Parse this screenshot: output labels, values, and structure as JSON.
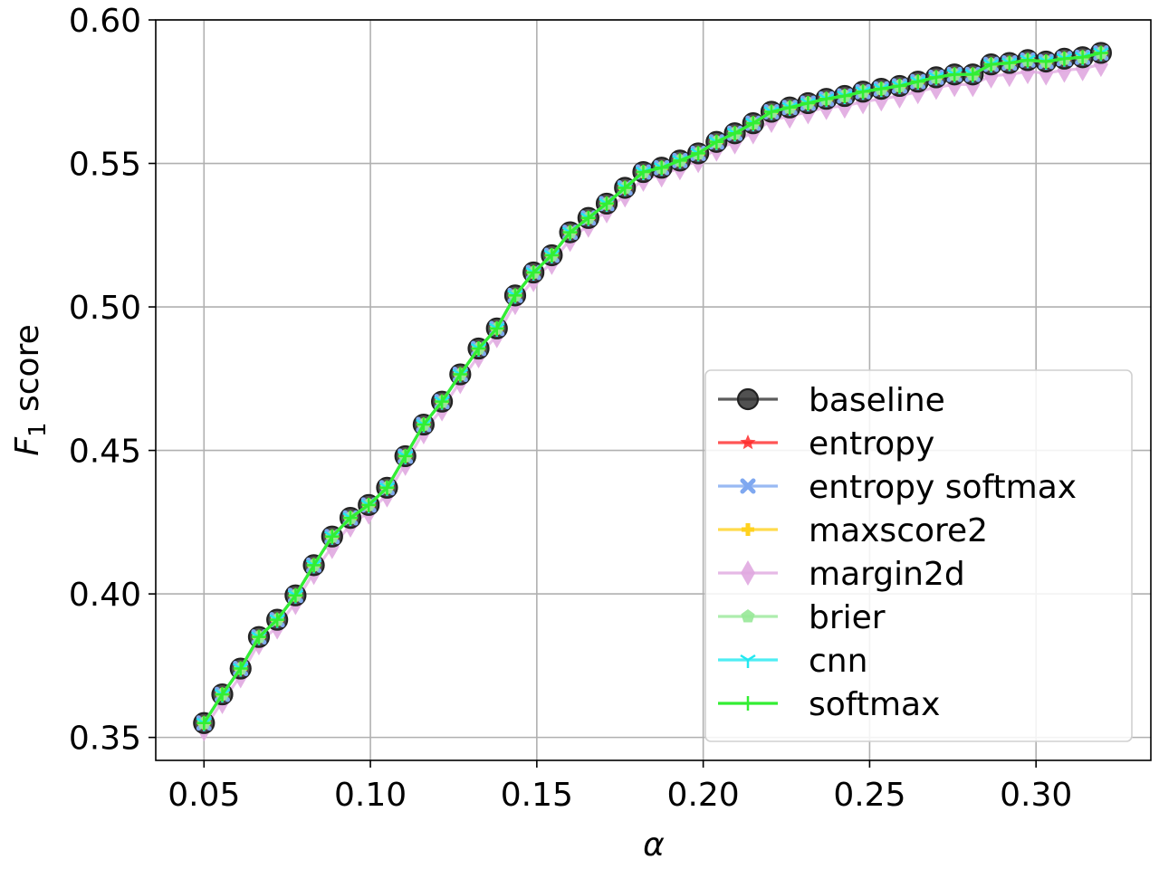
{
  "chart_data": {
    "type": "line",
    "title": "",
    "xlabel": "α",
    "ylabel_main": "F",
    "ylabel_sub": "1",
    "ylabel_rest": " score",
    "xlim": [
      0.0355,
      0.3345
    ],
    "ylim": [
      0.342,
      0.6
    ],
    "xticks": [
      0.05,
      0.1,
      0.15,
      0.2,
      0.25,
      0.3
    ],
    "xtick_labels": [
      "0.05",
      "0.10",
      "0.15",
      "0.20",
      "0.25",
      "0.30"
    ],
    "yticks": [
      0.35,
      0.4,
      0.45,
      0.5,
      0.55,
      0.6
    ],
    "ytick_labels": [
      "0.35",
      "0.40",
      "0.45",
      "0.50",
      "0.55",
      "0.60"
    ],
    "grid": true,
    "legend_position": "bottom-right",
    "x": [
      0.05,
      0.0555,
      0.061,
      0.0665,
      0.072,
      0.0775,
      0.083,
      0.0885,
      0.094,
      0.0995,
      0.105,
      0.1105,
      0.116,
      0.1215,
      0.127,
      0.1325,
      0.138,
      0.1435,
      0.149,
      0.1545,
      0.16,
      0.1655,
      0.171,
      0.1765,
      0.182,
      0.1875,
      0.193,
      0.1985,
      0.204,
      0.2095,
      0.215,
      0.2205,
      0.226,
      0.2315,
      0.237,
      0.2425,
      0.248,
      0.2535,
      0.259,
      0.2645,
      0.27,
      0.2755,
      0.281,
      0.2865,
      0.292,
      0.2975,
      0.303,
      0.3085,
      0.314,
      0.3195
    ],
    "series": [
      {
        "name": "baseline",
        "color": "#333333",
        "marker": "circle",
        "values": [
          0.355,
          0.365,
          0.374,
          0.385,
          0.391,
          0.3995,
          0.41,
          0.42,
          0.4265,
          0.431,
          0.437,
          0.448,
          0.459,
          0.467,
          0.4765,
          0.4855,
          0.4925,
          0.504,
          0.512,
          0.518,
          0.526,
          0.531,
          0.536,
          0.5415,
          0.547,
          0.5485,
          0.551,
          0.5535,
          0.5575,
          0.5605,
          0.564,
          0.568,
          0.5695,
          0.571,
          0.5725,
          0.5735,
          0.575,
          0.576,
          0.577,
          0.5785,
          0.58,
          0.581,
          0.581,
          0.5845,
          0.585,
          0.586,
          0.5855,
          0.5865,
          0.587,
          0.5885
        ]
      },
      {
        "name": "entropy",
        "color": "#ff2a2a",
        "marker": "star",
        "values": [
          0.355,
          0.365,
          0.374,
          0.385,
          0.391,
          0.3995,
          0.41,
          0.42,
          0.4265,
          0.431,
          0.437,
          0.448,
          0.459,
          0.467,
          0.4765,
          0.4855,
          0.4925,
          0.504,
          0.512,
          0.518,
          0.526,
          0.531,
          0.536,
          0.5415,
          0.547,
          0.5485,
          0.551,
          0.5535,
          0.5575,
          0.5605,
          0.564,
          0.568,
          0.5695,
          0.571,
          0.5725,
          0.5735,
          0.575,
          0.576,
          0.577,
          0.5785,
          0.58,
          0.581,
          0.581,
          0.5845,
          0.585,
          0.586,
          0.5855,
          0.5865,
          0.587,
          0.5885
        ]
      },
      {
        "name": "entropy softmax",
        "color": "#7fa8f0",
        "marker": "x",
        "values": [
          0.355,
          0.365,
          0.374,
          0.385,
          0.391,
          0.3995,
          0.41,
          0.42,
          0.4265,
          0.431,
          0.437,
          0.448,
          0.459,
          0.467,
          0.4765,
          0.4855,
          0.4925,
          0.504,
          0.512,
          0.518,
          0.526,
          0.531,
          0.536,
          0.5415,
          0.547,
          0.5485,
          0.551,
          0.5535,
          0.5575,
          0.5605,
          0.564,
          0.568,
          0.5695,
          0.571,
          0.5725,
          0.5735,
          0.575,
          0.576,
          0.577,
          0.5785,
          0.58,
          0.581,
          0.581,
          0.5845,
          0.585,
          0.586,
          0.5855,
          0.5865,
          0.587,
          0.5885
        ]
      },
      {
        "name": "maxscore2",
        "color": "#ffd21f",
        "marker": "plus-filled",
        "values": [
          0.355,
          0.365,
          0.374,
          0.385,
          0.391,
          0.3995,
          0.41,
          0.42,
          0.4265,
          0.431,
          0.437,
          0.448,
          0.459,
          0.467,
          0.4765,
          0.4855,
          0.4925,
          0.504,
          0.512,
          0.518,
          0.526,
          0.531,
          0.536,
          0.5415,
          0.547,
          0.5485,
          0.551,
          0.5535,
          0.5575,
          0.5605,
          0.564,
          0.568,
          0.5695,
          0.571,
          0.5725,
          0.5735,
          0.575,
          0.576,
          0.577,
          0.5785,
          0.58,
          0.581,
          0.581,
          0.5845,
          0.585,
          0.586,
          0.5855,
          0.5865,
          0.587,
          0.5885
        ]
      },
      {
        "name": "margin2d",
        "color": "#e0a8e0",
        "marker": "thin-diamond",
        "values": [
          0.353,
          0.3625,
          0.3715,
          0.383,
          0.3885,
          0.397,
          0.4075,
          0.4165,
          0.424,
          0.4285,
          0.4345,
          0.4455,
          0.4565,
          0.4645,
          0.474,
          0.483,
          0.49,
          0.5015,
          0.5095,
          0.5155,
          0.5235,
          0.5285,
          0.5335,
          0.539,
          0.5445,
          0.546,
          0.5485,
          0.551,
          0.555,
          0.5575,
          0.561,
          0.565,
          0.5665,
          0.568,
          0.5695,
          0.57,
          0.5715,
          0.5725,
          0.5735,
          0.575,
          0.5765,
          0.5775,
          0.5775,
          0.5805,
          0.581,
          0.582,
          0.5815,
          0.5825,
          0.583,
          0.5845
        ]
      },
      {
        "name": "brier",
        "color": "#98e898",
        "marker": "pentagon",
        "values": [
          0.355,
          0.365,
          0.374,
          0.385,
          0.391,
          0.3995,
          0.41,
          0.42,
          0.4265,
          0.431,
          0.437,
          0.448,
          0.459,
          0.467,
          0.4765,
          0.4855,
          0.4925,
          0.504,
          0.512,
          0.518,
          0.526,
          0.531,
          0.536,
          0.5415,
          0.547,
          0.5485,
          0.551,
          0.5535,
          0.5575,
          0.5605,
          0.564,
          0.568,
          0.5695,
          0.571,
          0.5725,
          0.5735,
          0.575,
          0.576,
          0.577,
          0.5785,
          0.58,
          0.581,
          0.581,
          0.5845,
          0.585,
          0.586,
          0.5855,
          0.5865,
          0.587,
          0.5885
        ]
      },
      {
        "name": "cnn",
        "color": "#22e8f0",
        "marker": "tri-down",
        "values": [
          0.355,
          0.365,
          0.374,
          0.385,
          0.391,
          0.3995,
          0.41,
          0.42,
          0.4265,
          0.431,
          0.437,
          0.448,
          0.459,
          0.467,
          0.4765,
          0.4855,
          0.4925,
          0.504,
          0.512,
          0.518,
          0.526,
          0.531,
          0.536,
          0.5415,
          0.547,
          0.5485,
          0.551,
          0.5535,
          0.5575,
          0.5605,
          0.564,
          0.568,
          0.5695,
          0.571,
          0.5725,
          0.5735,
          0.575,
          0.576,
          0.577,
          0.5785,
          0.58,
          0.581,
          0.581,
          0.5845,
          0.585,
          0.586,
          0.5855,
          0.5865,
          0.587,
          0.5885
        ]
      },
      {
        "name": "softmax",
        "color": "#33ee33",
        "marker": "plus",
        "values": [
          0.355,
          0.365,
          0.374,
          0.385,
          0.391,
          0.3995,
          0.41,
          0.42,
          0.4265,
          0.431,
          0.437,
          0.448,
          0.459,
          0.467,
          0.4765,
          0.4855,
          0.4925,
          0.504,
          0.512,
          0.518,
          0.526,
          0.531,
          0.536,
          0.5415,
          0.547,
          0.5485,
          0.551,
          0.5535,
          0.5575,
          0.5605,
          0.564,
          0.568,
          0.5695,
          0.571,
          0.5725,
          0.5735,
          0.575,
          0.576,
          0.577,
          0.5785,
          0.58,
          0.581,
          0.581,
          0.5845,
          0.585,
          0.586,
          0.5855,
          0.5865,
          0.587,
          0.5885
        ]
      }
    ],
    "draw_order": [
      "margin2d",
      "baseline",
      "entropy",
      "entropy softmax",
      "maxscore2",
      "brier",
      "cnn",
      "softmax"
    ]
  }
}
